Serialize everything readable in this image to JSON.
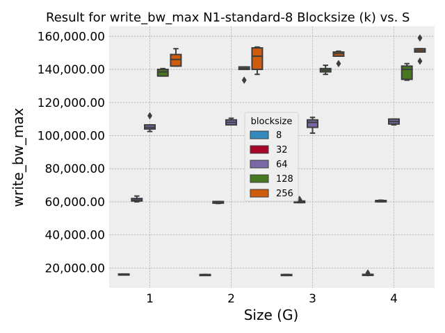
{
  "chart_data": {
    "type": "box",
    "title": "Result for write_bw_max N1-standard-8 Blocksize (k) vs. S",
    "xlabel": "Size (G)",
    "ylabel": "write_bw_max",
    "categories": [
      "1",
      "2",
      "3",
      "4"
    ],
    "ylim": [
      8000,
      166000
    ],
    "yticks": [
      20000,
      40000,
      60000,
      80000,
      100000,
      120000,
      140000,
      160000
    ],
    "ytick_labels": [
      "20,000.00",
      "40,000.00",
      "60,000.00",
      "80,000.00",
      "100,000.00",
      "120,000.00",
      "140,000.00",
      "160,000.00"
    ],
    "grid": true,
    "legend": {
      "title": "blocksize",
      "placement": "center"
    },
    "series": [
      {
        "name": "8",
        "color": "#348ABD",
        "boxes": [
          {
            "whislo": 16000,
            "q1": 16000,
            "med": 16200,
            "q3": 16400,
            "whishi": 16400,
            "fliers": []
          },
          {
            "whislo": 15700,
            "q1": 15700,
            "med": 15900,
            "q3": 16100,
            "whishi": 16100,
            "fliers": []
          },
          {
            "whislo": 15700,
            "q1": 15700,
            "med": 15900,
            "q3": 16100,
            "whishi": 16100,
            "fliers": []
          },
          {
            "whislo": 15600,
            "q1": 15600,
            "med": 15900,
            "q3": 16200,
            "whishi": 16200,
            "fliers": [
              17000
            ]
          }
        ]
      },
      {
        "name": "32",
        "color": "#A60628",
        "boxes": []
      },
      {
        "name": "64",
        "color": "#7A68A6",
        "boxes": [
          {
            "whislo": 102500,
            "q1": 104000,
            "med": 105000,
            "q3": 106500,
            "whishi": 106500,
            "fliers": [
              112000
            ]
          },
          {
            "whislo": 106500,
            "q1": 106500,
            "med": 108000,
            "q3": 109500,
            "whishi": 110500,
            "fliers": []
          },
          {
            "whislo": 101500,
            "q1": 105000,
            "med": 108000,
            "q3": 109500,
            "whishi": 111000,
            "fliers": []
          },
          {
            "whislo": 106500,
            "q1": 107000,
            "med": 108500,
            "q3": 110000,
            "whishi": 110000,
            "fliers": []
          }
        ]
      },
      {
        "name": "128",
        "color": "#467821",
        "boxes": [
          {
            "whislo": 136000,
            "q1": 136000,
            "med": 138500,
            "q3": 140000,
            "whishi": 140500,
            "fliers": []
          },
          {
            "whislo": 140000,
            "q1": 140000,
            "med": 140500,
            "q3": 141500,
            "whishi": 141500,
            "fliers": [
              133500
            ]
          },
          {
            "whislo": 137000,
            "q1": 138500,
            "med": 139500,
            "q3": 140500,
            "whishi": 142500,
            "fliers": []
          },
          {
            "whislo": 133500,
            "q1": 134000,
            "med": 140000,
            "q3": 142000,
            "whishi": 143500,
            "fliers": []
          }
        ]
      },
      {
        "name": "256",
        "color": "#CF5C0C",
        "boxes": [
          {
            "whislo": 142000,
            "q1": 142000,
            "med": 146000,
            "q3": 149000,
            "whishi": 152500,
            "fliers": []
          },
          {
            "whislo": 137000,
            "q1": 140000,
            "med": 148000,
            "q3": 153000,
            "whishi": 153500,
            "fliers": []
          },
          {
            "whislo": 148000,
            "q1": 148000,
            "med": 149500,
            "q3": 150500,
            "whishi": 151000,
            "fliers": [
              143500
            ]
          },
          {
            "whislo": 150500,
            "q1": 150500,
            "med": 151500,
            "q3": 152500,
            "whishi": 152500,
            "fliers": [
              159000,
              145000
            ]
          }
        ]
      }
    ],
    "extra_boxes": [
      {
        "category": "1",
        "whislo": 60000,
        "q1": 60500,
        "med": 61000,
        "q3": 62000,
        "whishi": 63500,
        "fliers": []
      },
      {
        "category": "2",
        "whislo": 59000,
        "q1": 59200,
        "med": 59600,
        "q3": 60200,
        "whishi": 60200,
        "fliers": []
      },
      {
        "category": "3",
        "whislo": 59500,
        "q1": 59500,
        "med": 60000,
        "q3": 60500,
        "whishi": 61000,
        "fliers": [
          61500
        ]
      },
      {
        "category": "4",
        "whislo": 60000,
        "q1": 60000,
        "med": 60400,
        "q3": 60800,
        "whishi": 61000,
        "fliers": []
      }
    ]
  }
}
